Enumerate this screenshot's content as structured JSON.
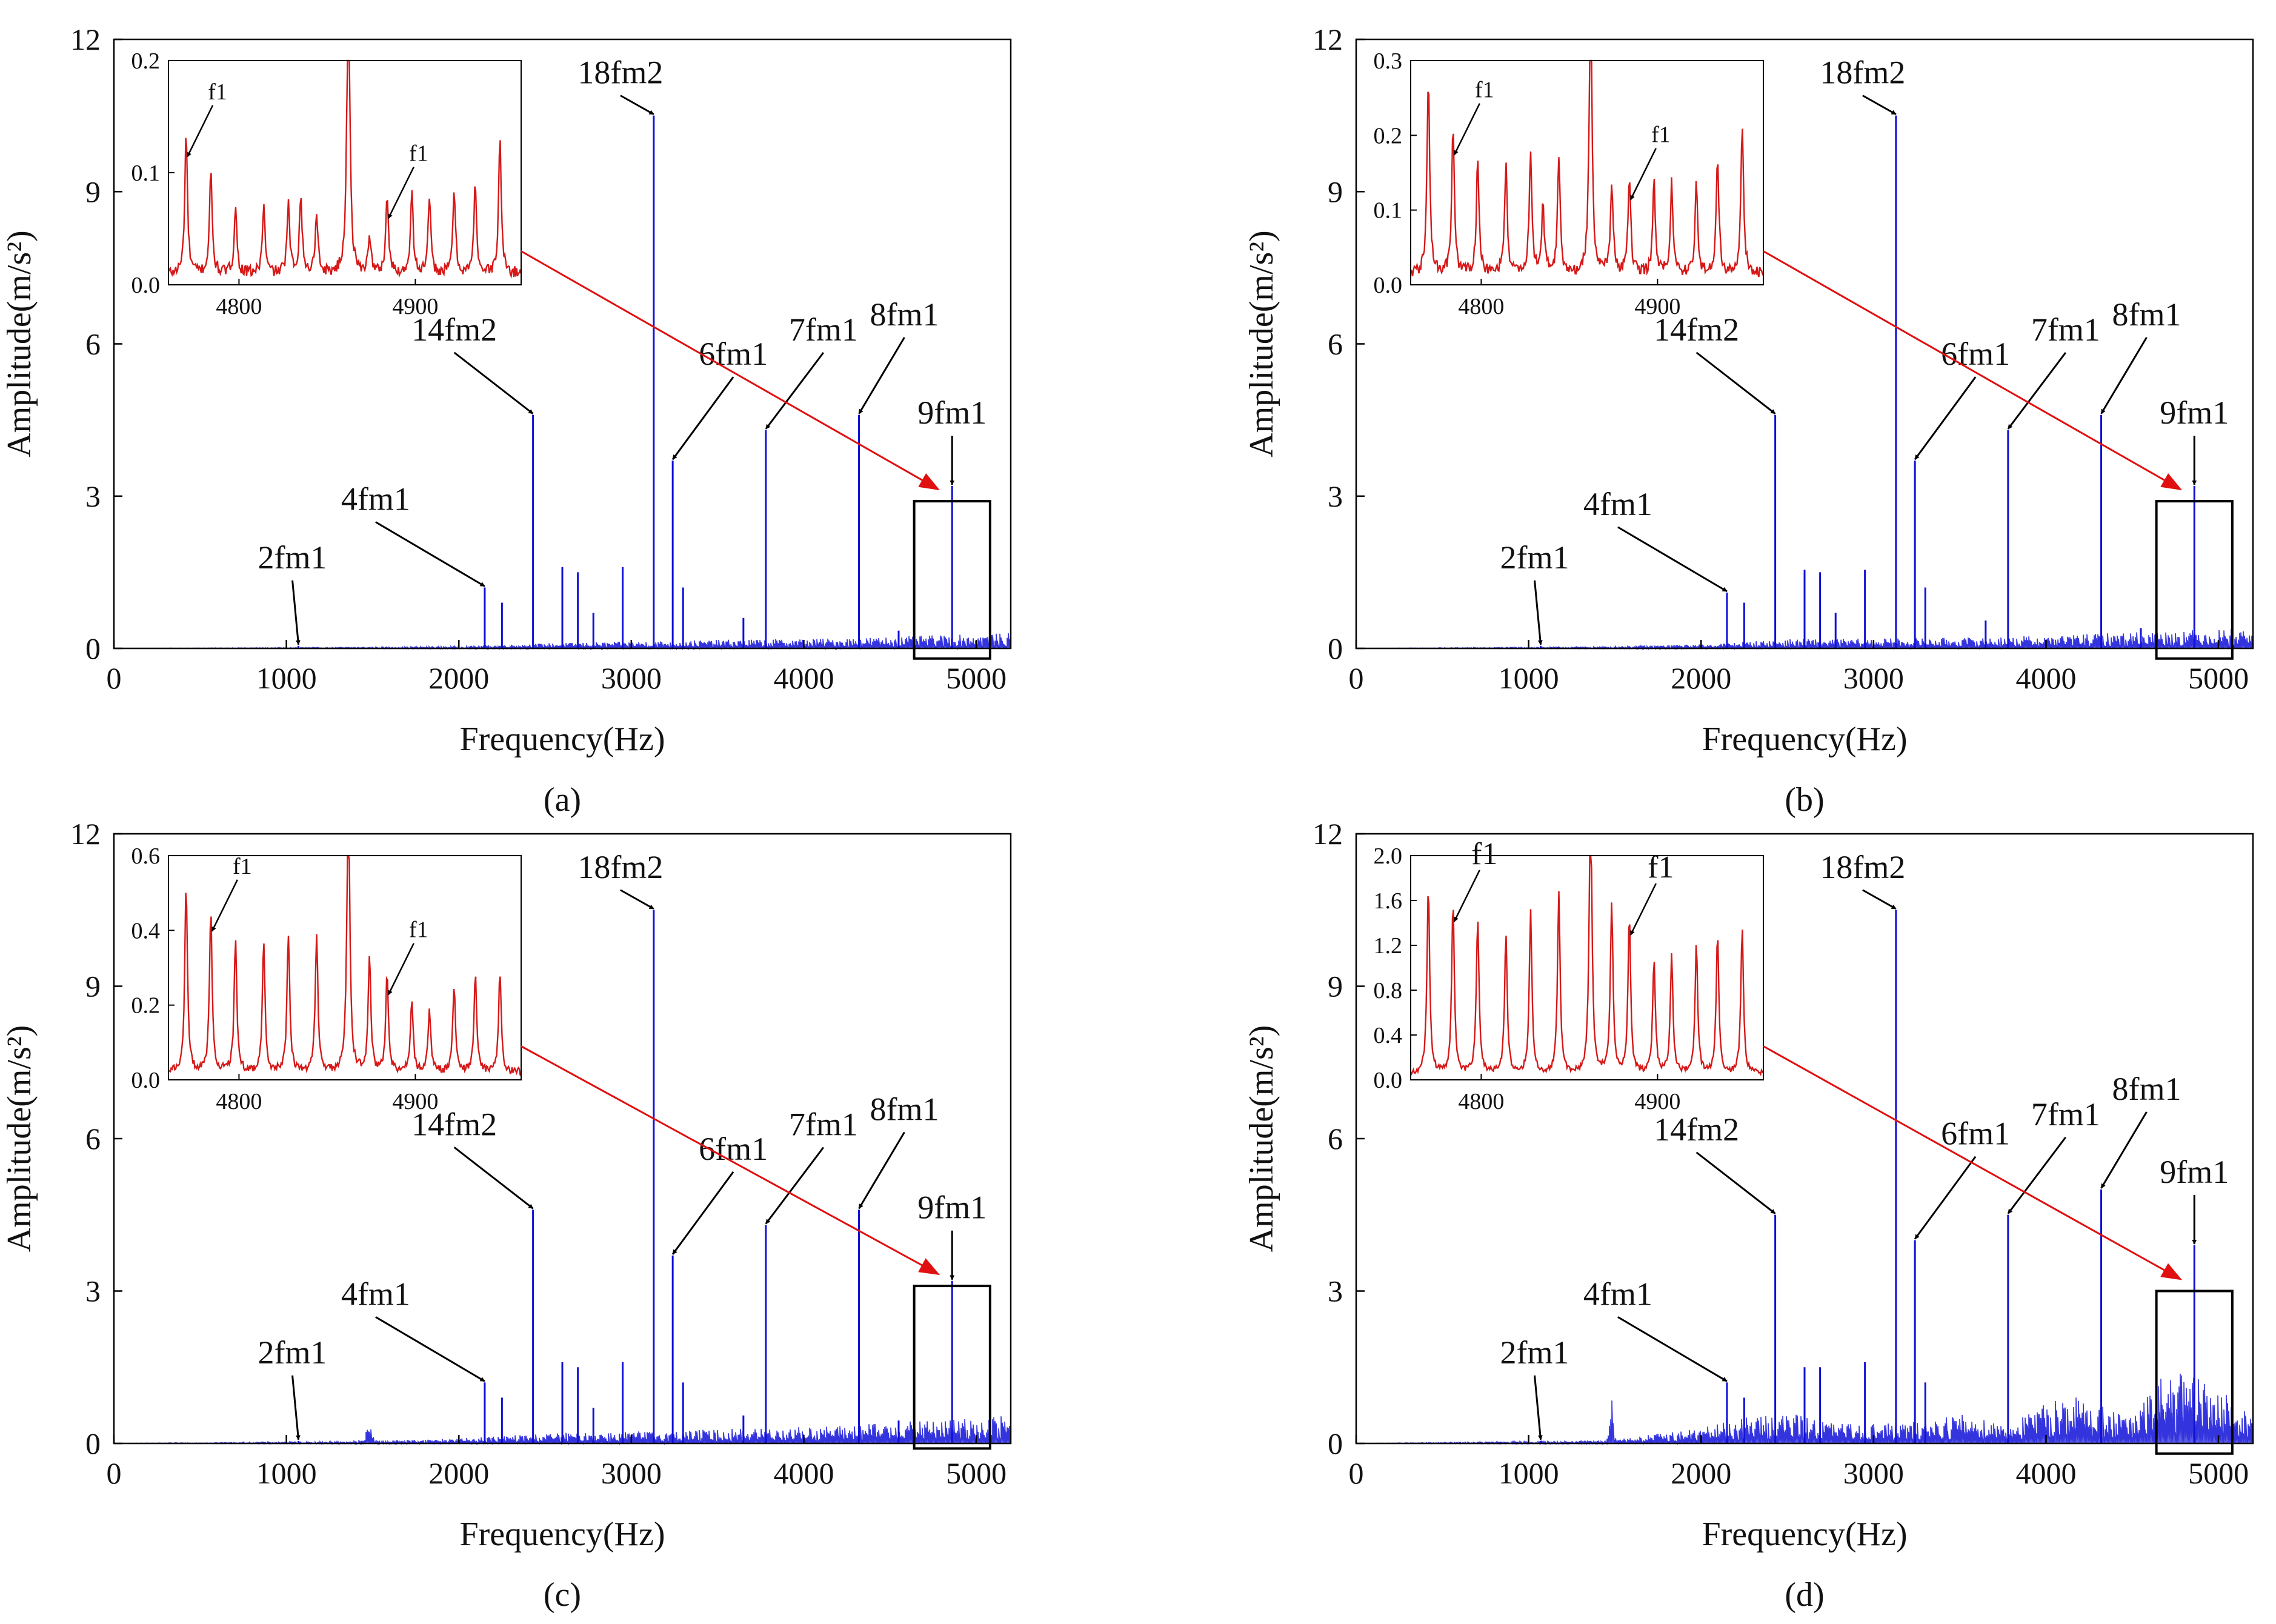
{
  "figure": {
    "colors": {
      "spectrum": "#1010d8",
      "inset_line": "#d61818",
      "pointer": "#e01010",
      "axis": "#000000"
    }
  },
  "chart_data": [
    {
      "type": "line",
      "panel_label": "(a)",
      "xlabel": "Frequency(Hz)",
      "ylabel": "Amplitude(m/s²)",
      "xlim": [
        0,
        5200
      ],
      "ylim": [
        0,
        12
      ],
      "xticks": [
        0,
        1000,
        2000,
        3000,
        4000,
        5000
      ],
      "yticks": [
        0,
        3,
        6,
        9,
        12
      ],
      "noise": {
        "floor": [
          [
            0,
            0
          ],
          [
            1400,
            0.02
          ],
          [
            2000,
            0.04
          ],
          [
            2500,
            0.1
          ],
          [
            3200,
            0.15
          ],
          [
            3700,
            0.18
          ],
          [
            4200,
            0.2
          ],
          [
            4700,
            0.25
          ],
          [
            5200,
            0.3
          ]
        ],
        "bumps": []
      },
      "peaks": [
        {
          "x": 1070,
          "y": 0.05
        },
        {
          "x": 2150,
          "y": 1.2
        },
        {
          "x": 2250,
          "y": 0.9
        },
        {
          "x": 2430,
          "y": 4.6
        },
        {
          "x": 2600,
          "y": 1.6
        },
        {
          "x": 2690,
          "y": 1.5
        },
        {
          "x": 2780,
          "y": 0.7
        },
        {
          "x": 2950,
          "y": 1.6
        },
        {
          "x": 3130,
          "y": 10.5
        },
        {
          "x": 3240,
          "y": 3.7
        },
        {
          "x": 3300,
          "y": 1.2
        },
        {
          "x": 3650,
          "y": 0.6
        },
        {
          "x": 3780,
          "y": 4.3
        },
        {
          "x": 4320,
          "y": 4.6
        },
        {
          "x": 4550,
          "y": 0.35
        },
        {
          "x": 4860,
          "y": 3.2
        }
      ],
      "annotations": [
        {
          "text": "2fm1",
          "x": 1070,
          "y": 0.05
        },
        {
          "text": "4fm1",
          "x": 2150,
          "y": 1.2
        },
        {
          "text": "14fm2",
          "x": 2430,
          "y": 4.6
        },
        {
          "text": "18fm2",
          "x": 3130,
          "y": 10.5
        },
        {
          "text": "6fm1",
          "x": 3240,
          "y": 3.7
        },
        {
          "text": "7fm1",
          "x": 3780,
          "y": 4.3
        },
        {
          "text": "8fm1",
          "x": 4320,
          "y": 4.6
        },
        {
          "text": "9fm1",
          "x": 4860,
          "y": 3.2
        }
      ],
      "zoom_box": {
        "xlim": [
          4640,
          5080
        ],
        "ylim": [
          -0.2,
          2.9
        ]
      },
      "inset": {
        "xlim": [
          4760,
          4960
        ],
        "ylim": [
          0,
          0.2
        ],
        "yticks": [
          0.0,
          0.1,
          0.2
        ],
        "ytick_labels": [
          "0.0",
          "0.1",
          "0.2"
        ],
        "xticks": [
          4800,
          4900
        ],
        "base": 0.01,
        "peaks": [
          [
            4770,
            0.125
          ],
          [
            4784,
            0.09
          ],
          [
            4798,
            0.06
          ],
          [
            4814,
            0.06
          ],
          [
            4828,
            0.06
          ],
          [
            4835,
            0.07
          ],
          [
            4844,
            0.055
          ],
          [
            4862,
            0.3
          ],
          [
            4874,
            0.035
          ],
          [
            4884,
            0.07
          ],
          [
            4898,
            0.075
          ],
          [
            4908,
            0.065
          ],
          [
            4922,
            0.075
          ],
          [
            4934,
            0.08
          ],
          [
            4948,
            0.12
          ]
        ],
        "annotations": [
          {
            "text": "f1",
            "x": 4770,
            "y": 0.125
          },
          {
            "text": "f1",
            "x": 4884,
            "y": 0.07
          }
        ]
      }
    },
    {
      "type": "line",
      "panel_label": "(b)",
      "xlabel": "Frequency(Hz)",
      "ylabel": "Amplitude(m/s²)",
      "xlim": [
        0,
        5200
      ],
      "ylim": [
        0,
        12
      ],
      "xticks": [
        0,
        1000,
        2000,
        3000,
        4000,
        5000
      ],
      "yticks": [
        0,
        3,
        6,
        9,
        12
      ],
      "noise": {
        "floor": [
          [
            0,
            0
          ],
          [
            1400,
            0.03
          ],
          [
            2000,
            0.08
          ],
          [
            2500,
            0.18
          ],
          [
            3200,
            0.2
          ],
          [
            3700,
            0.22
          ],
          [
            4200,
            0.28
          ],
          [
            4700,
            0.35
          ],
          [
            5200,
            0.4
          ]
        ],
        "bumps": []
      },
      "peaks": [
        {
          "x": 1070,
          "y": 0.05
        },
        {
          "x": 2150,
          "y": 1.1
        },
        {
          "x": 2250,
          "y": 0.9
        },
        {
          "x": 2430,
          "y": 4.6
        },
        {
          "x": 2600,
          "y": 1.55
        },
        {
          "x": 2690,
          "y": 1.5
        },
        {
          "x": 2780,
          "y": 0.7
        },
        {
          "x": 2950,
          "y": 1.55
        },
        {
          "x": 3130,
          "y": 10.5
        },
        {
          "x": 3240,
          "y": 3.7
        },
        {
          "x": 3300,
          "y": 1.2
        },
        {
          "x": 3650,
          "y": 0.55
        },
        {
          "x": 3780,
          "y": 4.3
        },
        {
          "x": 4320,
          "y": 4.6
        },
        {
          "x": 4550,
          "y": 0.4
        },
        {
          "x": 4860,
          "y": 3.2
        }
      ],
      "annotations": [
        {
          "text": "2fm1",
          "x": 1070,
          "y": 0.05
        },
        {
          "text": "4fm1",
          "x": 2150,
          "y": 1.1
        },
        {
          "text": "14fm2",
          "x": 2430,
          "y": 4.6
        },
        {
          "text": "18fm2",
          "x": 3130,
          "y": 10.5
        },
        {
          "text": "6fm1",
          "x": 3240,
          "y": 3.7
        },
        {
          "text": "7fm1",
          "x": 3780,
          "y": 4.3
        },
        {
          "text": "8fm1",
          "x": 4320,
          "y": 4.6
        },
        {
          "text": "9fm1",
          "x": 4860,
          "y": 3.2
        }
      ],
      "zoom_box": {
        "xlim": [
          4640,
          5080
        ],
        "ylim": [
          -0.2,
          2.9
        ]
      },
      "inset": {
        "xlim": [
          4760,
          4960
        ],
        "ylim": [
          0,
          0.3
        ],
        "yticks": [
          0.0,
          0.1,
          0.2,
          0.3
        ],
        "ytick_labels": [
          "0.0",
          "0.1",
          "0.2",
          "0.3"
        ],
        "xticks": [
          4800,
          4900
        ],
        "base": 0.015,
        "peaks": [
          [
            4770,
            0.26
          ],
          [
            4784,
            0.19
          ],
          [
            4798,
            0.15
          ],
          [
            4814,
            0.145
          ],
          [
            4828,
            0.16
          ],
          [
            4835,
            0.09
          ],
          [
            4844,
            0.15
          ],
          [
            4862,
            0.4
          ],
          [
            4874,
            0.12
          ],
          [
            4884,
            0.13
          ],
          [
            4898,
            0.12
          ],
          [
            4908,
            0.12
          ],
          [
            4922,
            0.12
          ],
          [
            4934,
            0.16
          ],
          [
            4948,
            0.2
          ]
        ],
        "annotations": [
          {
            "text": "f1",
            "x": 4784,
            "y": 0.19
          },
          {
            "text": "f1",
            "x": 4884,
            "y": 0.13
          }
        ]
      }
    },
    {
      "type": "line",
      "panel_label": "(c)",
      "xlabel": "Frequency(Hz)",
      "ylabel": "Amplitude(m/s²)",
      "xlim": [
        0,
        5200
      ],
      "ylim": [
        0,
        12
      ],
      "xticks": [
        0,
        1000,
        2000,
        3000,
        4000,
        5000
      ],
      "yticks": [
        0,
        3,
        6,
        9,
        12
      ],
      "noise": {
        "floor": [
          [
            0,
            0
          ],
          [
            1400,
            0.04
          ],
          [
            2000,
            0.1
          ],
          [
            2500,
            0.2
          ],
          [
            3200,
            0.25
          ],
          [
            3700,
            0.3
          ],
          [
            4200,
            0.35
          ],
          [
            4700,
            0.45
          ],
          [
            5200,
            0.55
          ]
        ],
        "bumps": [
          [
            1480,
            0.35,
            25
          ]
        ]
      },
      "peaks": [
        {
          "x": 1070,
          "y": 0.05
        },
        {
          "x": 2150,
          "y": 1.2
        },
        {
          "x": 2250,
          "y": 0.9
        },
        {
          "x": 2430,
          "y": 4.6
        },
        {
          "x": 2600,
          "y": 1.6
        },
        {
          "x": 2690,
          "y": 1.5
        },
        {
          "x": 2780,
          "y": 0.7
        },
        {
          "x": 2950,
          "y": 1.6
        },
        {
          "x": 3130,
          "y": 10.5
        },
        {
          "x": 3240,
          "y": 3.7
        },
        {
          "x": 3300,
          "y": 1.2
        },
        {
          "x": 3650,
          "y": 0.55
        },
        {
          "x": 3780,
          "y": 4.3
        },
        {
          "x": 4320,
          "y": 4.6
        },
        {
          "x": 4550,
          "y": 0.45
        },
        {
          "x": 4860,
          "y": 3.2
        }
      ],
      "annotations": [
        {
          "text": "2fm1",
          "x": 1070,
          "y": 0.05
        },
        {
          "text": "4fm1",
          "x": 2150,
          "y": 1.2
        },
        {
          "text": "14fm2",
          "x": 2430,
          "y": 4.6
        },
        {
          "text": "18fm2",
          "x": 3130,
          "y": 10.5
        },
        {
          "text": "6fm1",
          "x": 3240,
          "y": 3.7
        },
        {
          "text": "7fm1",
          "x": 3780,
          "y": 4.3
        },
        {
          "text": "8fm1",
          "x": 4320,
          "y": 4.6
        },
        {
          "text": "9fm1",
          "x": 4860,
          "y": 3.2
        }
      ],
      "zoom_box": {
        "xlim": [
          4640,
          5080
        ],
        "ylim": [
          -0.1,
          3.1
        ]
      },
      "inset": {
        "xlim": [
          4760,
          4960
        ],
        "ylim": [
          0,
          0.6
        ],
        "yticks": [
          0.0,
          0.2,
          0.4,
          0.6
        ],
        "ytick_labels": [
          "0.0",
          "0.2",
          "0.4",
          "0.6"
        ],
        "xticks": [
          4800,
          4900
        ],
        "base": 0.02,
        "peaks": [
          [
            4770,
            0.5
          ],
          [
            4784,
            0.43
          ],
          [
            4798,
            0.35
          ],
          [
            4814,
            0.34
          ],
          [
            4828,
            0.37
          ],
          [
            4844,
            0.37
          ],
          [
            4862,
            0.8
          ],
          [
            4874,
            0.31
          ],
          [
            4884,
            0.26
          ],
          [
            4898,
            0.19
          ],
          [
            4908,
            0.17
          ],
          [
            4922,
            0.23
          ],
          [
            4934,
            0.26
          ],
          [
            4948,
            0.27
          ]
        ],
        "annotations": [
          {
            "text": "f1",
            "x": 4784,
            "y": 0.43
          },
          {
            "text": "f1",
            "x": 4884,
            "y": 0.26
          }
        ]
      }
    },
    {
      "type": "line",
      "panel_label": "(d)",
      "xlabel": "Frequency(Hz)",
      "ylabel": "Amplitude(m/s²)",
      "xlim": [
        0,
        5200
      ],
      "ylim": [
        0,
        12
      ],
      "xticks": [
        0,
        1000,
        2000,
        3000,
        4000,
        5000
      ],
      "yticks": [
        0,
        3,
        6,
        9,
        12
      ],
      "noise": {
        "floor": [
          [
            0,
            0
          ],
          [
            1400,
            0.05
          ],
          [
            2000,
            0.3
          ],
          [
            2300,
            0.55
          ],
          [
            2500,
            0.6
          ],
          [
            2800,
            0.4
          ],
          [
            3200,
            0.4
          ],
          [
            3500,
            0.6
          ],
          [
            3800,
            0.4
          ],
          [
            4100,
            1.0
          ],
          [
            4300,
            0.8
          ],
          [
            4500,
            0.5
          ],
          [
            4700,
            1.5
          ],
          [
            4950,
            1.2
          ],
          [
            5200,
            0.6
          ]
        ],
        "bumps": [
          [
            1480,
            0.8,
            20
          ]
        ]
      },
      "peaks": [
        {
          "x": 1070,
          "y": 0.05
        },
        {
          "x": 2150,
          "y": 1.2
        },
        {
          "x": 2250,
          "y": 0.9
        },
        {
          "x": 2430,
          "y": 4.5
        },
        {
          "x": 2600,
          "y": 1.5
        },
        {
          "x": 2690,
          "y": 1.5
        },
        {
          "x": 2950,
          "y": 1.6
        },
        {
          "x": 3130,
          "y": 10.5
        },
        {
          "x": 3240,
          "y": 4.0
        },
        {
          "x": 3300,
          "y": 1.2
        },
        {
          "x": 3780,
          "y": 4.5
        },
        {
          "x": 4320,
          "y": 5.0
        },
        {
          "x": 4860,
          "y": 3.9
        }
      ],
      "annotations": [
        {
          "text": "2fm1",
          "x": 1070,
          "y": 0.05
        },
        {
          "text": "4fm1",
          "x": 2150,
          "y": 1.2
        },
        {
          "text": "14fm2",
          "x": 2430,
          "y": 4.5
        },
        {
          "text": "18fm2",
          "x": 3130,
          "y": 10.5
        },
        {
          "text": "6fm1",
          "x": 3240,
          "y": 4.0
        },
        {
          "text": "7fm1",
          "x": 3780,
          "y": 4.5
        },
        {
          "text": "8fm1",
          "x": 4320,
          "y": 5.0
        },
        {
          "text": "9fm1",
          "x": 4860,
          "y": 3.9
        }
      ],
      "zoom_box": {
        "xlim": [
          4640,
          5080
        ],
        "ylim": [
          -0.2,
          3.0
        ]
      },
      "inset": {
        "xlim": [
          4760,
          4960
        ],
        "ylim": [
          0,
          2.0
        ],
        "yticks": [
          0.0,
          0.4,
          0.8,
          1.2,
          1.6,
          2.0
        ],
        "ytick_labels": [
          "0.0",
          "0.4",
          "0.8",
          "1.2",
          "1.6",
          "2.0"
        ],
        "xticks": [
          4800,
          4900
        ],
        "base": 0.05,
        "peaks": [
          [
            4770,
            1.68
          ],
          [
            4784,
            1.52
          ],
          [
            4798,
            1.4
          ],
          [
            4814,
            1.22
          ],
          [
            4828,
            1.45
          ],
          [
            4844,
            1.6
          ],
          [
            4862,
            2.6
          ],
          [
            4874,
            1.52
          ],
          [
            4884,
            1.4
          ],
          [
            4898,
            1.03
          ],
          [
            4908,
            1.05
          ],
          [
            4922,
            1.15
          ],
          [
            4934,
            1.24
          ],
          [
            4948,
            1.3
          ]
        ],
        "annotations": [
          {
            "text": "f1",
            "x": 4784,
            "y": 1.52
          },
          {
            "text": "f1",
            "x": 4884,
            "y": 1.4
          }
        ]
      }
    }
  ]
}
